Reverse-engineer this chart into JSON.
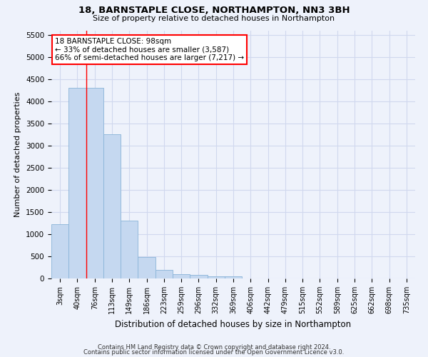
{
  "title1": "18, BARNSTAPLE CLOSE, NORTHAMPTON, NN3 3BH",
  "title2": "Size of property relative to detached houses in Northampton",
  "xlabel": "Distribution of detached houses by size in Northampton",
  "ylabel": "Number of detached properties",
  "bar_color": "#c5d8f0",
  "bar_edge_color": "#8ab4d8",
  "categories": [
    "3sqm",
    "40sqm",
    "76sqm",
    "113sqm",
    "149sqm",
    "186sqm",
    "223sqm",
    "259sqm",
    "296sqm",
    "332sqm",
    "369sqm",
    "406sqm",
    "442sqm",
    "479sqm",
    "515sqm",
    "552sqm",
    "589sqm",
    "625sqm",
    "662sqm",
    "698sqm",
    "735sqm"
  ],
  "values": [
    1230,
    4300,
    4300,
    3250,
    1300,
    480,
    200,
    100,
    80,
    50,
    50,
    0,
    0,
    0,
    0,
    0,
    0,
    0,
    0,
    0,
    0
  ],
  "ylim": [
    0,
    5600
  ],
  "yticks": [
    0,
    500,
    1000,
    1500,
    2000,
    2500,
    3000,
    3500,
    4000,
    4500,
    5000,
    5500
  ],
  "red_line_x": 1.5,
  "annotation_text": "18 BARNSTAPLE CLOSE: 98sqm\n← 33% of detached houses are smaller (3,587)\n66% of semi-detached houses are larger (7,217) →",
  "annotation_box_color": "white",
  "annotation_box_edge": "red",
  "footer1": "Contains HM Land Registry data © Crown copyright and database right 2024.",
  "footer2": "Contains public sector information licensed under the Open Government Licence v3.0.",
  "background_color": "#eef2fb",
  "grid_color": "#d0d8ee"
}
